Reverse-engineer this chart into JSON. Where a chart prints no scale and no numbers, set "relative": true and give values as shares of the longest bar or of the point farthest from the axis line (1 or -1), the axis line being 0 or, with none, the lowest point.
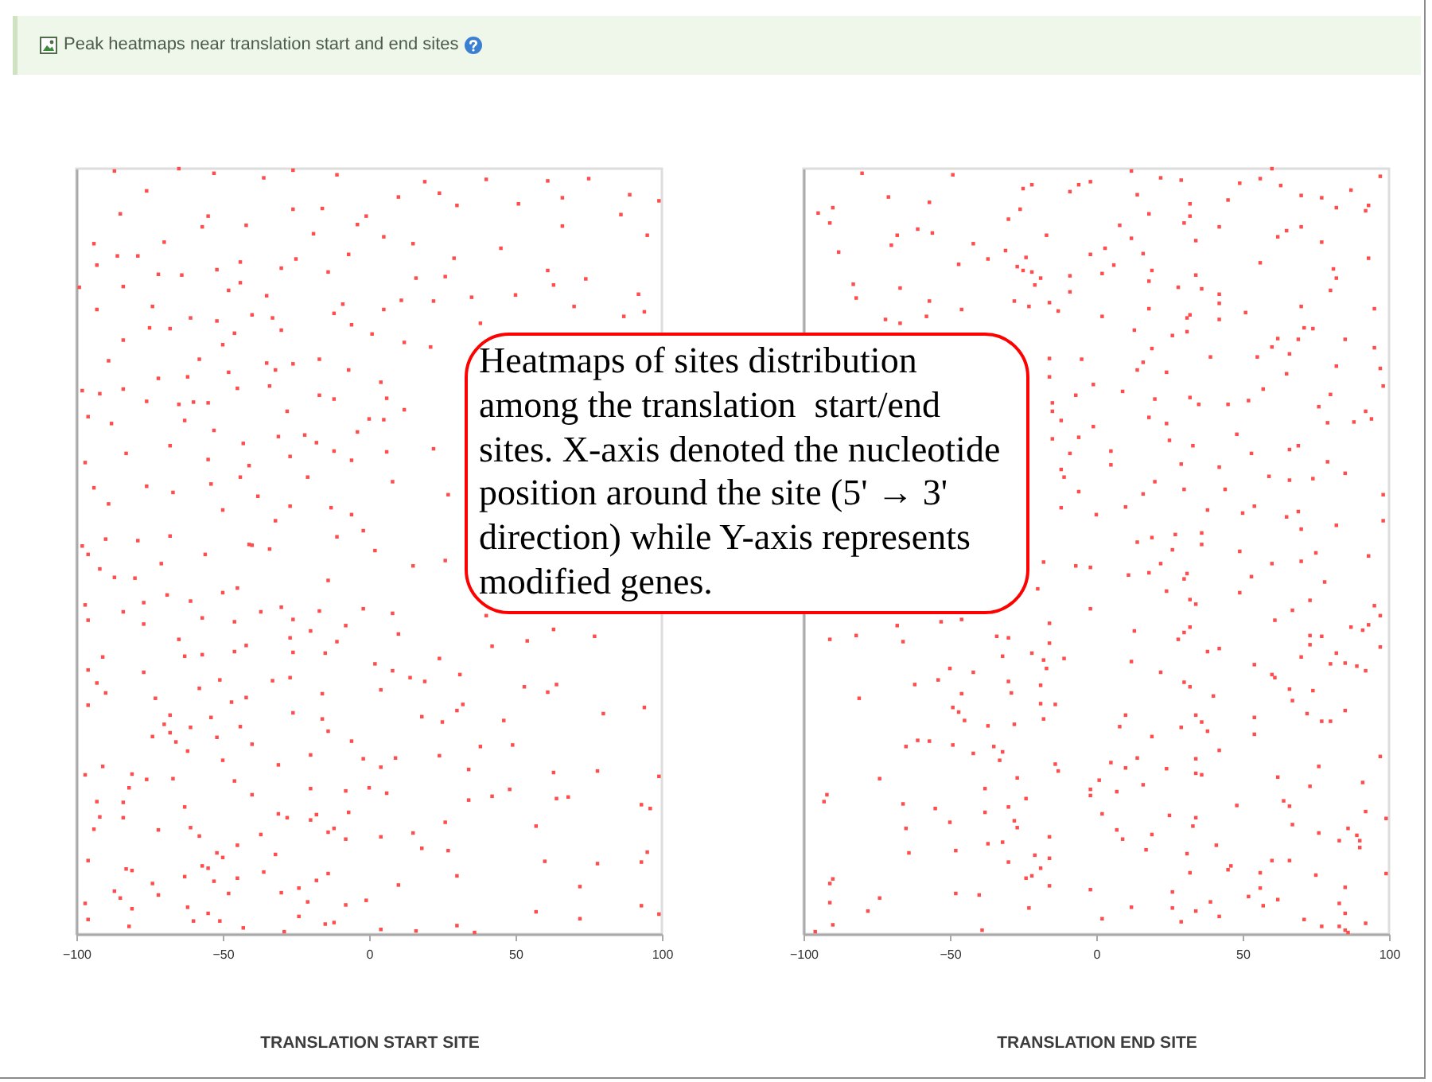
{
  "chart_data": [
    {
      "type": "scatter",
      "title": "Peak heatmaps near translation start and end sites",
      "annotations": [
        "Heatmaps of sites distribution among the translation  start/end sites. X-axis denoted the nucleotide position around the site (5' → 3' direction) while Y-axis represents modified genes."
      ],
      "xlabel": "TRANSLATION START SITE",
      "relative": true,
      "marker": "square",
      "xlim": [
        -100,
        100
      ],
      "xticks": [
        -100,
        -50,
        0,
        50,
        100
      ],
      "series": [
        {
          "color": "#ff4d4d",
          "x": [
            -87,
            -65,
            -53,
            -36,
            -26,
            -11,
            19,
            40,
            61,
            75,
            89,
            99,
            -76,
            -85,
            -55,
            -26,
            -16,
            -1,
            10,
            24,
            30,
            51,
            66,
            86,
            -94,
            -86,
            -70,
            -57,
            -42,
            -19,
            -4,
            5,
            15,
            29,
            45,
            66,
            95,
            -93,
            -79,
            -72,
            -64,
            -52,
            -44,
            -30,
            -25,
            -14,
            -7,
            16,
            26,
            61,
            74,
            -84,
            -48,
            -44,
            -35,
            -9,
            11,
            22,
            35,
            50,
            63,
            92,
            -99,
            -93,
            -74,
            -61,
            -52,
            -40,
            -33,
            -12,
            -6,
            5,
            38,
            70,
            87,
            94,
            -84,
            -75,
            -68,
            -50,
            -46,
            -30,
            -17,
            1,
            12,
            21,
            -89,
            -72,
            -62,
            -58,
            -48,
            -35,
            -32,
            -26,
            -7,
            4,
            -98,
            -92,
            -84,
            -76,
            -65,
            -60,
            -55,
            -45,
            -34,
            -28,
            -17,
            -12,
            6,
            12,
            -96,
            -88,
            -63,
            -53,
            -31,
            -22,
            -18,
            -4,
            0,
            5,
            22,
            6,
            -97,
            -83,
            -68,
            -55,
            -43,
            -41,
            -27,
            -12,
            -6,
            -94,
            -89,
            -76,
            -67,
            -54,
            -44,
            -38,
            -27,
            -21,
            -13,
            -6,
            8,
            27,
            -90,
            -79,
            -68,
            -56,
            -50,
            -41,
            -32,
            -11,
            -2,
            -98,
            -96,
            -92,
            -80,
            -71,
            -40,
            -34,
            2,
            15,
            26,
            -97,
            -87,
            -77,
            -69,
            -61,
            -50,
            -45,
            -37,
            -30,
            -26,
            -17,
            -14,
            -2,
            8,
            -96,
            -84,
            -77,
            -65,
            -57,
            -46,
            -27,
            -20,
            -8,
            10,
            40,
            63,
            77,
            -91,
            -96,
            -77,
            -63,
            -57,
            -46,
            -42,
            -33,
            -26,
            -15,
            -11,
            2,
            8,
            19,
            24,
            31,
            42,
            54,
            -93,
            -90,
            -73,
            -58,
            -51,
            -42,
            -27,
            -16,
            4,
            14,
            32,
            53,
            61,
            64,
            80,
            94,
            -96,
            -68,
            -70,
            -61,
            -54,
            -47,
            -44,
            -26,
            -16,
            -14,
            18,
            25,
            30,
            46,
            38,
            -74,
            -68,
            -66,
            -62,
            -50,
            -52,
            -40,
            -31,
            -20,
            -6,
            -2,
            4,
            9,
            24,
            34,
            49,
            63,
            78,
            99,
            -97,
            -91,
            -81,
            -82,
            -76,
            -67,
            -46,
            -40,
            -20,
            -8,
            0,
            6,
            34,
            42,
            48,
            64,
            68,
            93,
            96,
            -93,
            -92,
            -84,
            -84,
            -94,
            -72,
            -63,
            -61,
            -58,
            -52,
            -50,
            -45,
            -37,
            -32,
            -31,
            -28,
            -20,
            -18,
            -14,
            -12,
            -8,
            -7,
            4,
            15,
            18,
            26,
            27,
            57,
            60,
            78,
            93,
            95,
            -96,
            -83,
            -81,
            -74,
            -87,
            -85,
            -81,
            -72,
            -63,
            -62,
            -57,
            -55,
            -53,
            -48,
            -45,
            -36,
            -30,
            -24,
            -21,
            -18,
            -14,
            -8,
            -1,
            10,
            30,
            72,
            -97,
            -96,
            -82,
            -60,
            -55,
            -51,
            -43,
            -29,
            -24,
            -15,
            -12,
            4,
            16,
            30,
            36,
            57,
            72,
            93,
            99
          ],
          "values": [
            0.997,
            1,
            0.994,
            0.988,
            0.998,
            0.992,
            0.983,
            0.986,
            0.984,
            0.987,
            0.966,
            0.958,
            0.971,
            0.941,
            0.938,
            0.947,
            0.948,
            0.938,
            0.963,
            0.968,
            0.952,
            0.954,
            0.962,
            0.94,
            0.902,
            0.886,
            0.904,
            0.924,
            0.926,
            0.915,
            0.927,
            0.911,
            0.902,
            0.883,
            0.896,
            0.925,
            0.913,
            0.874,
            0.886,
            0.862,
            0.861,
            0.868,
            0.878,
            0.87,
            0.882,
            0.865,
            0.888,
            0.857,
            0.859,
            0.867,
            0.856,
            0.846,
            0.841,
            0.851,
            0.834,
            0.823,
            0.828,
            0.827,
            0.832,
            0.835,
            0.848,
            0.836,
            0.845,
            0.816,
            0.82,
            0.805,
            0.801,
            0.809,
            0.805,
            0.811,
            0.796,
            0.816,
            0.798,
            0.82,
            0.807,
            0.813,
            0.776,
            0.792,
            0.791,
            0.77,
            0.785,
            0.789,
            0.751,
            0.784,
            0.773,
            0.767,
            0.749,
            0.726,
            0.728,
            0.751,
            0.734,
            0.746,
            0.737,
            0.745,
            0.737,
            0.721,
            0.71,
            0.706,
            0.712,
            0.696,
            0.692,
            0.695,
            0.694,
            0.713,
            0.716,
            0.683,
            0.704,
            0.699,
            0.7,
            0.685,
            0.676,
            0.667,
            0.671,
            0.658,
            0.65,
            0.652,
            0.642,
            0.656,
            0.673,
            0.672,
            0.634,
            0.63,
            0.616,
            0.628,
            0.638,
            0.62,
            0.641,
            0.612,
            0.624,
            0.631,
            0.619,
            0.583,
            0.562,
            0.585,
            0.577,
            0.588,
            0.597,
            0.572,
            0.559,
            0.597,
            0.557,
            0.548,
            0.591,
            0.574,
            0.516,
            0.514,
            0.52,
            0.496,
            0.554,
            0.509,
            0.54,
            0.519,
            0.527,
            0.507,
            0.496,
            0.477,
            0.465,
            0.484,
            0.508,
            0.503,
            0.501,
            0.481,
            0.488,
            0.43,
            0.466,
            0.433,
            0.443,
            0.435,
            0.446,
            0.452,
            0.421,
            0.427,
            0.411,
            0.422,
            0.462,
            0.425,
            0.419,
            0.41,
            0.421,
            0.405,
            0.385,
            0.413,
            0.408,
            0.387,
            0.396,
            0.403,
            0.392,
            0.416,
            0.398,
            0.389,
            0.362,
            0.345,
            0.342,
            0.363,
            0.365,
            0.369,
            0.377,
            0.331,
            0.368,
            0.367,
            0.382,
            0.353,
            0.344,
            0.33,
            0.36,
            0.339,
            0.376,
            0.383,
            0.328,
            0.315,
            0.308,
            0.321,
            0.332,
            0.309,
            0.335,
            0.314,
            0.319,
            0.335,
            0.3,
            0.323,
            0.316,
            0.326,
            0.288,
            0.296,
            0.299,
            0.286,
            0.274,
            0.27,
            0.283,
            0.303,
            0.271,
            0.289,
            0.281,
            0.265,
            0.284,
            0.277,
            0.292,
            0.279,
            0.245,
            0.258,
            0.263,
            0.251,
            0.239,
            0.227,
            0.257,
            0.248,
            0.221,
            0.234,
            0.252,
            0.229,
            0.218,
            0.23,
            0.233,
            0.215,
            0.247,
            0.211,
            0.213,
            0.206,
            0.208,
            0.219,
            0.209,
            0.191,
            0.202,
            0.203,
            0.2,
            0.182,
            0.19,
            0.187,
            0.191,
            0.184,
            0.175,
            0.18,
            0.189,
            0.177,
            0.179,
            0.169,
            0.164,
            0.173,
            0.153,
            0.172,
            0.152,
            0.137,
            0.136,
            0.166,
            0.139,
            0.128,
            0.106,
            0.1,
            0.116,
            0.13,
            0.104,
            0.157,
            0.152,
            0.149,
            0.156,
            0.133,
            0.138,
            0.124,
            0.159,
            0.127,
            0.132,
            0.112,
            0.146,
            0.109,
            0.141,
            0.095,
            0.092,
            0.094,
            0.107,
            0.096,
            0.085,
            0.083,
            0.066,
            0.056,
            0.047,
            0.033,
            0.051,
            0.075,
            0.035,
            0.089,
            0.086,
            0.069,
            0.053,
            0.073,
            0.081,
            0.054,
            0.06,
            0.042,
            0.07,
            0.079,
            0.038,
            0.044,
            0.064,
            0.076,
            0.062,
            0.04,
            0.019,
            0.01,
            0.017,
            0.027,
            0.017,
            0.008,
            0.003,
            0.023,
            0.013,
            0.015,
            0.006,
            0.004,
            0.011,
            0.002,
            0.029,
            0.02,
            0.037,
            0.026
          ]
        }
      ]
    },
    {
      "type": "scatter",
      "xlabel": "TRANSLATION END SITE",
      "relative": true,
      "marker": "square",
      "xlim": [
        -100,
        100
      ],
      "xticks": [
        -100,
        -50,
        0,
        50,
        100
      ],
      "series": [
        {
          "color": "#ff4d4d",
          "x": [
            -80,
            -49,
            -90,
            -95,
            -91,
            -71,
            -57,
            -70,
            -61,
            -56,
            -68,
            -88,
            -83,
            -82,
            -67,
            -57,
            -58,
            -72,
            -67,
            -42,
            -37,
            -47,
            -31,
            -24,
            -30,
            -26,
            -25,
            -22,
            -9,
            -6,
            -2,
            12,
            22,
            29,
            49,
            56,
            60,
            63,
            70,
            77,
            87,
            97,
            82,
            92,
            93,
            45,
            14,
            18,
            32,
            32,
            30,
            -17,
            3,
            12,
            8,
            -2,
            6,
            16,
            19,
            34,
            42,
            62,
            65,
            70,
            77,
            93,
            -25,
            -27,
            -22,
            -21,
            -19,
            -9,
            -9,
            2,
            18,
            28,
            34,
            36,
            42,
            42,
            42,
            51,
            56,
            81,
            82,
            80,
            70,
            95,
            -46,
            -28,
            -23,
            -16,
            -13,
            2,
            18,
            31,
            32,
            26,
            31,
            19,
            13,
            24,
            16,
            14,
            -5,
            -16,
            -16,
            -7,
            -1,
            9,
            18,
            24,
            20,
            -15,
            -15,
            -12,
            -15,
            -9,
            -6,
            5,
            -1,
            5,
            -12,
            -11,
            -6,
            -12,
            0,
            10,
            16,
            20,
            30,
            33,
            35,
            32,
            25,
            29,
            39,
            45,
            48,
            52,
            55,
            57,
            60,
            62,
            65,
            66,
            69,
            71,
            74,
            76,
            79,
            82,
            85,
            80,
            88,
            92,
            94,
            95,
            98,
            97,
            69,
            66,
            59,
            66,
            74,
            85,
            79,
            42,
            53,
            44,
            50,
            54,
            38,
            69,
            70,
            82,
            98,
            98,
            65,
            36,
            27,
            19,
            14,
            26,
            36,
            49,
            60,
            70,
            75,
            93,
            -18,
            -7,
            -2,
            11,
            18,
            22,
            30,
            31,
            53,
            78,
            49,
            24,
            32,
            34,
            -2,
            -20,
            67,
            73,
            87,
            93,
            97,
            95,
            97,
            91,
            61,
            73,
            73,
            77,
            82,
            70,
            92,
            89,
            85,
            80,
            32,
            30,
            28,
            13,
            -16,
            -16,
            -30,
            -34,
            -46,
            -53,
            -68,
            -66,
            -82,
            -91,
            -50,
            -54,
            -62,
            -42,
            -32,
            -30,
            -22,
            -19,
            -17,
            -18,
            -11,
            12,
            22,
            30,
            32,
            38,
            42,
            54,
            60,
            61,
            66,
            67,
            40,
            74,
            -81,
            -49,
            -47,
            -46,
            -45,
            -29,
            -19,
            -14,
            -18,
            -37,
            -28,
            10,
            8,
            19,
            29,
            34,
            36,
            38,
            54,
            54,
            72,
            80,
            77,
            85,
            -65,
            -61,
            -57,
            -49,
            -42,
            -35,
            -32,
            -33,
            -14,
            -13,
            -74,
            -92,
            -93,
            -66,
            -55,
            -38,
            -30,
            -28,
            -27,
            -27,
            -24,
            -38,
            -65,
            -64,
            -50,
            -48,
            -37,
            -32,
            -30,
            -21,
            -19,
            -16,
            -16,
            -22,
            -24,
            -16,
            -91,
            -90,
            -91,
            -90,
            -96,
            -74,
            -78,
            -48,
            -40,
            -39,
            -23,
            -2,
            2,
            -2,
            -2,
            1,
            2,
            5,
            7,
            7,
            9,
            14,
            16,
            19,
            17,
            10,
            24,
            25,
            31,
            34,
            34,
            36,
            34,
            33,
            32,
            12,
            26,
            26,
            29,
            34,
            39,
            42,
            41,
            42,
            48,
            46,
            45,
            52,
            56,
            56,
            57,
            62,
            60,
            62,
            64,
            66,
            67,
            66,
            73,
            76,
            76,
            75,
            71,
            77,
            83,
            85,
            83,
            85,
            86,
            83,
            86,
            85,
            89,
            90,
            90,
            92,
            91,
            97,
            99,
            99,
            92
          ],
          "values": [
            0.994,
            0.992,
            0.949,
            0.942,
            0.929,
            0.963,
            0.956,
            0.9,
            0.921,
            0.916,
            0.913,
            0.891,
            0.849,
            0.831,
            0.844,
            0.827,
            0.807,
            0.803,
            0.798,
            0.902,
            0.882,
            0.875,
            0.893,
            0.884,
            0.934,
            0.947,
            0.974,
            0.979,
            0.97,
            0.979,
            0.983,
            0.997,
            0.988,
            0.985,
            0.981,
            0.987,
            1,
            0.978,
            0.965,
            0.962,
            0.972,
            0.99,
            0.949,
            0.945,
            0.952,
            0.959,
            0.966,
            0.941,
            0.954,
            0.938,
            0.929,
            0.913,
            0.896,
            0.909,
            0.926,
            0.888,
            0.874,
            0.889,
            0.867,
            0.906,
            0.924,
            0.911,
            0.919,
            0.924,
            0.904,
            0.883,
            0.867,
            0.872,
            0.865,
            0.848,
            0.857,
            0.86,
            0.839,
            0.863,
            0.853,
            0.845,
            0.861,
            0.843,
            0.836,
            0.824,
            0.803,
            0.812,
            0.877,
            0.869,
            0.857,
            0.841,
            0.82,
            0.817,
            0.816,
            0.827,
            0.82,
            0.825,
            0.814,
            0.807,
            0.817,
            0.805,
            0.809,
            0.782,
            0.787,
            0.765,
            0.789,
            0.734,
            0.747,
            0.737,
            0.751,
            0.752,
            0.728,
            0.704,
            0.718,
            0.709,
            0.675,
            0.667,
            0.699,
            0.694,
            0.683,
            0.671,
            0.647,
            0.628,
            0.649,
            0.631,
            0.663,
            0.613,
            0.607,
            0.597,
            0.578,
            0.557,
            0.548,
            0.558,
            0.575,
            0.591,
            0.581,
            0.638,
            0.692,
            0.701,
            0.645,
            0.614,
            0.754,
            0.692,
            0.653,
            0.697,
            0.754,
            0.712,
            0.767,
            0.778,
            0.732,
            0.758,
            0.777,
            0.792,
            0.791,
            0.689,
            0.668,
            0.742,
            0.777,
            0.705,
            0.669,
            0.683,
            0.673,
            0.766,
            0.716,
            0.739,
            0.638,
            0.633,
            0.598,
            0.593,
            0.595,
            0.602,
            0.617,
            0.61,
            0.628,
            0.581,
            0.55,
            0.559,
            0.554,
            0.552,
            0.529,
            0.534,
            0.54,
            0.574,
            0.545,
            0.524,
            0.522,
            0.518,
            0.512,
            0.502,
            0.509,
            0.5,
            0.484,
            0.487,
            0.498,
            0.494,
            0.486,
            0.481,
            0.479,
            0.469,
            0.472,
            0.484,
            0.464,
            0.471,
            0.467,
            0.46,
            0.446,
            0.448,
            0.437,
            0.431,
            0.425,
            0.451,
            0.423,
            0.436,
            0.401,
            0.404,
            0.416,
            0.429,
            0.375,
            0.397,
            0.41,
            0.39,
            0.378,
            0.389,
            0.367,
            0.362,
            0.344,
            0.35,
            0.354,
            0.353,
            0.401,
            0.394,
            0.385,
            0.396,
            0.406,
            0.38,
            0.387,
            0.389,
            0.411,
            0.408,
            0.403,
            0.382,
            0.39,
            0.385,
            0.347,
            0.332,
            0.326,
            0.342,
            0.363,
            0.33,
            0.367,
            0.325,
            0.347,
            0.358,
            0.36,
            0.356,
            0.342,
            0.329,
            0.323,
            0.369,
            0.373,
            0.352,
            0.339,
            0.335,
            0.32,
            0.305,
            0.311,
            0.318,
            0.308,
            0.296,
            0.29,
            0.314,
            0.279,
            0.315,
            0.301,
            0.3,
            0.281,
            0.272,
            0.274,
            0.286,
            0.271,
            0.258,
            0.27,
            0.286,
            0.277,
            0.265,
            0.283,
            0.261,
            0.288,
            0.278,
            0.278,
            0.292,
            0.245,
            0.253,
            0.252,
            0.247,
            0.236,
            0.245,
            0.238,
            0.227,
            0.222,
            0.213,
            0.203,
            0.182,
            0.173,
            0.17,
            0.164,
            0.19,
            0.166,
            0.148,
            0.139,
            0.204,
            0.177,
            0.159,
            0.138,
            0.106,
            0.146,
            0.109,
            0.118,
            0.12,
            0.094,
            0.103,
            0.086,
            0.099,
            0.063,
            0.076,
            0.073,
            0.127,
            0.066,
            0.072,
            0.041,
            0.012,
            0.003,
            0.047,
            0.03,
            0.053,
            0.051,
            0.005,
            0.034,
            0.058,
            0.02,
            0.189,
            0.181,
            0.201,
            0.157,
            0.224,
            0.186,
            0.136,
            0.124,
            0.23,
            0.195,
            0.13,
            0.11,
            0.217,
            0.216,
            0.155,
            0.105,
            0.229,
            0.21,
            0.208,
            0.152,
            0.141,
            0.08,
            0.035,
            0.055,
            0.034,
            0.016,
            0.03,
            0.042,
            0.023,
            0.116,
            0.24,
            0.168,
            0.089,
            0.084,
            0.049,
            0.08,
            0.06,
            0.037,
            0.045,
            0.096,
            0.205,
            0.174,
            0.167,
            0.143,
            0.096,
            0.193,
            0.219,
            0.132,
            0.077,
            0.019,
            0.01,
            0.04,
            0.027,
            0.01,
            0.005,
            0.002,
            0.122,
            0.138,
            0.061,
            0.129,
            0.122,
            0.113,
            0.16,
            0.198,
            0.232,
            0.151,
            0.079,
            0.014
          ]
        }
      ]
    }
  ]
}
